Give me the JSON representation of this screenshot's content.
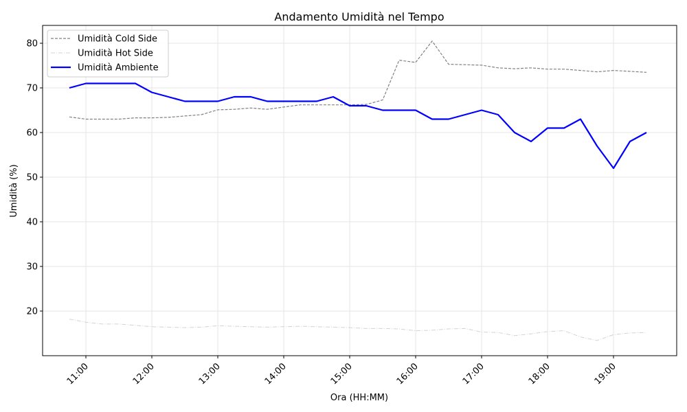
{
  "chart_data": {
    "type": "line",
    "title": "Andamento Umidità nel Tempo",
    "xlabel": "Ora (HH:MM)",
    "ylabel": "Umidità (%)",
    "x_tick_labels": [
      "11:00",
      "12:00",
      "13:00",
      "14:00",
      "15:00",
      "16:00",
      "17:00",
      "18:00",
      "19:00"
    ],
    "y_ticks": [
      20,
      30,
      40,
      50,
      60,
      70,
      80
    ],
    "ylim": [
      10,
      84
    ],
    "grid": true,
    "legend_position": "upper-left",
    "x": [
      "10:45",
      "11:00",
      "11:15",
      "11:30",
      "11:45",
      "12:00",
      "12:15",
      "12:30",
      "12:45",
      "13:00",
      "13:15",
      "13:30",
      "13:45",
      "14:00",
      "14:15",
      "14:30",
      "14:45",
      "15:00",
      "15:15",
      "15:30",
      "15:45",
      "16:00",
      "16:15",
      "16:30",
      "16:45",
      "17:00",
      "17:15",
      "17:30",
      "17:45",
      "18:00",
      "18:15",
      "18:30",
      "18:45",
      "19:00",
      "19:15",
      "19:30"
    ],
    "series": [
      {
        "name": "Umidità Cold Side",
        "color": "#808080",
        "style": "dashed",
        "values": [
          63.5,
          63.0,
          63.0,
          63.0,
          63.3,
          63.3,
          63.4,
          63.7,
          64.0,
          65.1,
          65.2,
          65.5,
          65.2,
          65.7,
          66.2,
          66.2,
          66.2,
          66.2,
          66.3,
          67.3,
          76.2,
          75.7,
          80.5,
          75.3,
          75.2,
          75.1,
          74.5,
          74.3,
          74.5,
          74.2,
          74.2,
          73.9,
          73.6,
          73.9,
          73.7,
          73.5
        ]
      },
      {
        "name": "Umidità Hot Side",
        "color": "#d3d3d3",
        "style": "dashdot",
        "values": [
          18.2,
          17.5,
          17.1,
          17.1,
          16.8,
          16.5,
          16.4,
          16.3,
          16.4,
          16.7,
          16.6,
          16.5,
          16.4,
          16.5,
          16.6,
          16.5,
          16.4,
          16.3,
          16.1,
          16.1,
          16.0,
          15.6,
          15.7,
          16.0,
          16.1,
          15.3,
          15.2,
          14.5,
          14.9,
          15.4,
          15.6,
          14.2,
          13.4,
          14.7,
          15.1,
          15.2
        ]
      },
      {
        "name": "Umidità Ambiente",
        "color": "#0000ff",
        "style": "solid",
        "values": [
          70,
          71,
          71,
          71,
          71,
          69,
          68,
          67,
          67,
          67,
          68,
          68,
          67,
          67,
          67,
          67,
          68,
          66,
          66,
          65,
          65,
          65,
          63,
          63,
          64,
          65,
          64,
          60,
          58,
          61,
          61,
          63,
          57,
          52,
          58,
          60
        ]
      }
    ]
  }
}
